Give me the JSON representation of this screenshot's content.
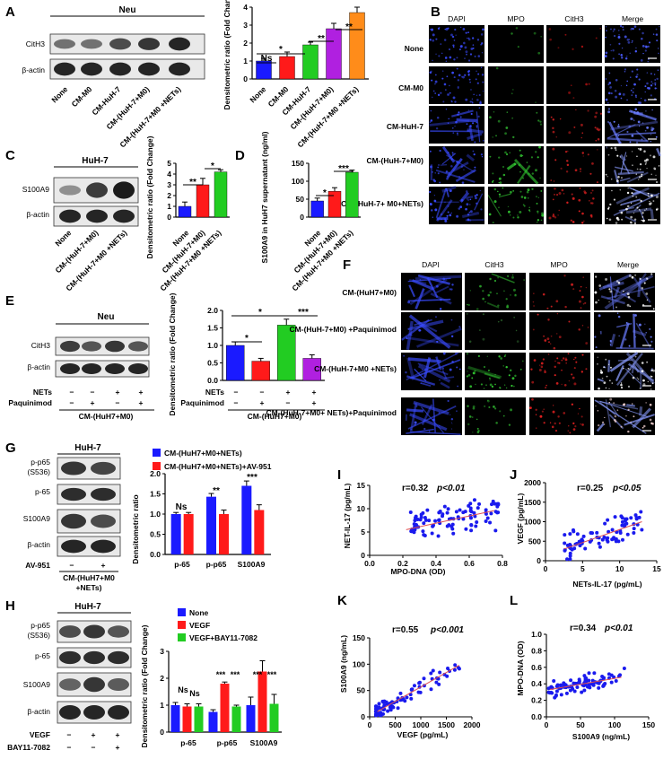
{
  "figure": {
    "panel_labels": [
      "A",
      "B",
      "C",
      "D",
      "E",
      "F",
      "G",
      "H",
      "I",
      "J",
      "K",
      "L"
    ],
    "colors": {
      "blue": "#1a1aff",
      "red": "#ff1a1a",
      "green": "#22cc22",
      "purple": "#b020e0",
      "orange": "#ff8c1a",
      "scatter": "#1a1aee",
      "fit": "#e05050"
    },
    "A": {
      "blot_header": "Neu",
      "bands": [
        "CitH3",
        "β-actin"
      ],
      "lanes": [
        "None",
        "CM-M0",
        "CM-HuH-7",
        "CM-(HuH-7+M0)",
        "CM-(HuH-7+M0 +NETs)"
      ],
      "ylabel": "Densitometric ratio (Fold Change)",
      "sig": [
        "Ns",
        "*",
        "**",
        "**"
      ]
    },
    "B": {
      "columns": [
        "DAPI",
        "MPO",
        "CitH3",
        "Merge"
      ],
      "rows": [
        "None",
        "CM-M0",
        "CM-HuH-7",
        "CM-(HuH-7+M0)",
        "CM-(HuH-7+ M0+NETs)"
      ]
    },
    "C": {
      "blot_header": "HuH-7",
      "bands": [
        "S100A9",
        "β-actin"
      ],
      "lanes": [
        "None",
        "CM-(HuH-7+M0)",
        "CM-(HuH-7+M0 +NETs)"
      ],
      "ylabel": "Densitometric ratio (Fold Change)",
      "sig": [
        "**",
        "*"
      ]
    },
    "D": {
      "ylabel": "S100A9 in HuH7 supernatant (ng/ml)",
      "lanes": [
        "None",
        "CM-(HuH-7+M0)",
        "CM-(HuH-7+M0 +NETs)"
      ],
      "sig": [
        "*",
        "***"
      ]
    },
    "E": {
      "blot_header": "Neu",
      "bands": [
        "CitH3",
        "β-actin"
      ],
      "treat_rows": [
        "NETs",
        "Paquinimod"
      ],
      "treat_signs": [
        [
          "−",
          "−",
          "+",
          "+"
        ],
        [
          "−",
          "+",
          "−",
          "+"
        ]
      ],
      "condition": "CM-(HuH7+M0)",
      "ylabel": "Densitometric ratio (Fold Change)",
      "sig": [
        "*",
        "*",
        "***"
      ]
    },
    "F": {
      "columns": [
        "DAPI",
        "CitH3",
        "MPO",
        "Merge"
      ],
      "rows": [
        "CM-(HuH7+M0)",
        "CM-(HuH-7+M0) +Paquinimod",
        "CM-(HuH-7+M0 +NETs)",
        "CM-(HuH-7+M0+ NETs)+Paquinimod"
      ]
    },
    "G": {
      "blot_header": "HuH-7",
      "bands": [
        "p-p65 (S536)",
        "p-65",
        "S100A9",
        "β-actin"
      ],
      "treat_row": "AV-951",
      "treat_signs": [
        "−",
        "+"
      ],
      "condition": "CM-(HuH7+M0 +NETs)",
      "legend": [
        "CM-(HuH7+M0+NETs)",
        "CM-(HuH7+M0+NETs)+AV-951"
      ],
      "categories": [
        "p-65",
        "p-p65",
        "S100A9"
      ],
      "ylabel": "Densitometric ratio",
      "sig": [
        "Ns",
        "**",
        "***"
      ]
    },
    "H": {
      "blot_header": "HuH-7",
      "bands": [
        "p-p65 (S536)",
        "p-65",
        "S100A9",
        "β-actin"
      ],
      "treat_rows": [
        "VEGF",
        "BAY11-7082"
      ],
      "treat_signs": [
        [
          "−",
          "+",
          "+"
        ],
        [
          "−",
          "−",
          "+"
        ]
      ],
      "legend": [
        "None",
        "VEGF",
        "VEGF+BAY11-7082"
      ],
      "categories": [
        "p-65",
        "p-p65",
        "S100A9"
      ],
      "ylabel": "Densitometric ratio (Fold Change)",
      "sig": [
        "Ns",
        "Ns",
        "***",
        "***",
        "***",
        "***"
      ]
    },
    "I": {
      "annot_r": "r=0.32",
      "annot_p": "p<0.01",
      "xlabel": "MPO-DNA (OD)",
      "ylabel": "NET-IL-17 (pg/mL)"
    },
    "J": {
      "annot_r": "r=0.25",
      "annot_p": "p<0.05",
      "xlabel": "NETs-IL-17 (pg/mL)",
      "ylabel": "VEGF (pg/mL)"
    },
    "K": {
      "annot_r": "r=0.55",
      "annot_p": "p<0.001",
      "xlabel": "VEGF (pg/mL)",
      "ylabel": "S100A9 (ng/mL)"
    },
    "L": {
      "annot_r": "r=0.34",
      "annot_p": "p<0.01",
      "xlabel": "S100A9 (ng/mL)",
      "ylabel": "MPO-DNA (OD)"
    }
  },
  "chart_data": [
    {
      "panel": "A",
      "type": "bar",
      "categories": [
        "None",
        "CM-M0",
        "CM-HuH-7",
        "CM-(HuH-7+M0)",
        "CM-(HuH-7+M0 +NETs)"
      ],
      "values": [
        1.0,
        1.25,
        1.9,
        2.8,
        3.7
      ],
      "errors": [
        0.15,
        0.25,
        0.15,
        0.3,
        0.3
      ],
      "ylim": [
        0,
        4
      ],
      "yticks": [
        0,
        1,
        2,
        3,
        4
      ],
      "bar_colors": [
        "#1a1aff",
        "#ff1a1a",
        "#22cc22",
        "#b020e0",
        "#ff8c1a"
      ]
    },
    {
      "panel": "C",
      "type": "bar",
      "categories": [
        "None",
        "CM-(HuH-7+M0)",
        "CM-(HuH-7+M0 +NETs)"
      ],
      "values": [
        1.0,
        3.0,
        4.2
      ],
      "errors": [
        0.4,
        0.6,
        0.2
      ],
      "ylim": [
        0,
        5
      ],
      "yticks": [
        0,
        1,
        2,
        3,
        4,
        5
      ],
      "bar_colors": [
        "#1a1aff",
        "#ff1a1a",
        "#22cc22"
      ]
    },
    {
      "panel": "D",
      "type": "bar",
      "categories": [
        "None",
        "CM-(HuH-7+M0)",
        "CM-(HuH-7+M0 +NETs)"
      ],
      "values": [
        45,
        72,
        125
      ],
      "errors": [
        8,
        10,
        6
      ],
      "ylim": [
        0,
        150
      ],
      "yticks": [
        0,
        50,
        100,
        150
      ],
      "bar_colors": [
        "#1a1aff",
        "#ff1a1a",
        "#22cc22"
      ]
    },
    {
      "panel": "E",
      "type": "bar",
      "categories": [
        "−/−",
        "−/+",
        "+/−",
        "+/+"
      ],
      "values": [
        1.0,
        0.55,
        1.58,
        0.63
      ],
      "errors": [
        0.1,
        0.08,
        0.17,
        0.1
      ],
      "ylim": [
        0,
        2
      ],
      "yticks": [
        0.0,
        0.5,
        1.0,
        1.5,
        2.0
      ],
      "bar_colors": [
        "#1a1aff",
        "#ff1a1a",
        "#22cc22",
        "#b020e0"
      ]
    },
    {
      "panel": "G",
      "type": "bar",
      "categories": [
        "p-65",
        "p-p65",
        "S100A9"
      ],
      "series": [
        {
          "name": "CM-(HuH7+M0+NETs)",
          "values": [
            1.0,
            1.43,
            1.7
          ],
          "errors": [
            0.04,
            0.08,
            0.12
          ]
        },
        {
          "name": "CM-(HuH7+M0+NETs)+AV-951",
          "values": [
            1.0,
            1.0,
            1.1
          ],
          "errors": [
            0.04,
            0.1,
            0.13
          ]
        }
      ],
      "ylim": [
        0,
        2.0
      ],
      "yticks": [
        0.0,
        0.5,
        1.0,
        1.5,
        2.0
      ]
    },
    {
      "panel": "H",
      "type": "bar",
      "categories": [
        "p-65",
        "p-p65",
        "S100A9"
      ],
      "series": [
        {
          "name": "None",
          "values": [
            1.0,
            0.75,
            1.0
          ],
          "errors": [
            0.1,
            0.08,
            0.3
          ]
        },
        {
          "name": "VEGF",
          "values": [
            0.95,
            1.8,
            2.25
          ],
          "errors": [
            0.1,
            0.06,
            0.4
          ]
        },
        {
          "name": "VEGF+BAY11-7082",
          "values": [
            0.95,
            0.95,
            1.05
          ],
          "errors": [
            0.1,
            0.05,
            0.35
          ]
        }
      ],
      "ylim": [
        0,
        3
      ],
      "yticks": [
        0,
        1,
        2,
        3
      ]
    },
    {
      "panel": "I",
      "type": "scatter",
      "xlim": [
        0.0,
        0.8
      ],
      "ylim": [
        0,
        15
      ],
      "xticks": [
        0.0,
        0.2,
        0.4,
        0.6,
        0.8
      ],
      "yticks": [
        0,
        5,
        10,
        15
      ],
      "fit": [
        [
          0.22,
          5.5
        ],
        [
          0.75,
          9.6
        ]
      ]
    },
    {
      "panel": "J",
      "type": "scatter",
      "xlim": [
        0,
        15
      ],
      "ylim": [
        0,
        2000
      ],
      "xticks": [
        0,
        5,
        10,
        15
      ],
      "yticks": [
        0,
        500,
        1000,
        1500,
        2000
      ],
      "fit": [
        [
          2.5,
          300
        ],
        [
          13,
          1000
        ]
      ]
    },
    {
      "panel": "K",
      "type": "scatter",
      "xlim": [
        0,
        2000
      ],
      "ylim": [
        0,
        150
      ],
      "xticks": [
        0,
        500,
        1000,
        1500,
        2000
      ],
      "yticks": [
        0,
        50,
        100,
        150
      ],
      "fit": [
        [
          150,
          10
        ],
        [
          1750,
          98
        ]
      ]
    },
    {
      "panel": "L",
      "type": "scatter",
      "xlim": [
        0,
        150
      ],
      "ylim": [
        0.0,
        1.0
      ],
      "xticks": [
        0,
        50,
        100,
        150
      ],
      "yticks": [
        0.0,
        0.2,
        0.4,
        0.6,
        0.8,
        1.0
      ],
      "fit": [
        [
          5,
          0.33
        ],
        [
          110,
          0.48
        ]
      ]
    }
  ]
}
